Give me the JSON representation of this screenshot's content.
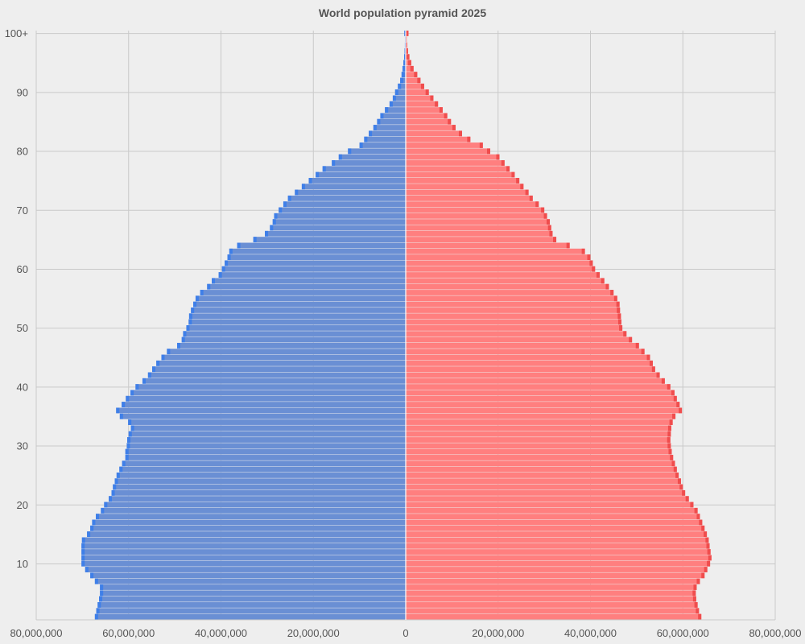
{
  "chart_data": {
    "type": "bar",
    "orientation": "horizontal-pyramid",
    "title": "World population pyramid 2025",
    "xlabel": "",
    "ylabel": "",
    "xlim": [
      -80000000,
      80000000
    ],
    "x_tick_values": [
      -80000000,
      -60000000,
      -40000000,
      -20000000,
      0,
      20000000,
      40000000,
      60000000,
      80000000
    ],
    "x_tick_labels": [
      "80,000,000",
      "60,000,000",
      "40,000,000",
      "20,000,000",
      "0",
      "20,000,000",
      "40,000,000",
      "60,000,000",
      "80,000,000"
    ],
    "y_tick_values": [
      10,
      20,
      30,
      40,
      50,
      60,
      70,
      80,
      90,
      100
    ],
    "y_tick_labels": [
      "10",
      "20",
      "30",
      "40",
      "50",
      "60",
      "70",
      "80",
      "90",
      "100+"
    ],
    "ages": [
      1,
      2,
      3,
      4,
      5,
      6,
      7,
      8,
      9,
      10,
      11,
      12,
      13,
      14,
      15,
      16,
      17,
      18,
      19,
      20,
      21,
      22,
      23,
      24,
      25,
      26,
      27,
      28,
      29,
      30,
      31,
      32,
      33,
      34,
      35,
      36,
      37,
      38,
      39,
      40,
      41,
      42,
      43,
      44,
      45,
      46,
      47,
      48,
      49,
      50,
      51,
      52,
      53,
      54,
      55,
      56,
      57,
      58,
      59,
      60,
      61,
      62,
      63,
      64,
      65,
      66,
      67,
      68,
      69,
      70,
      71,
      72,
      73,
      74,
      75,
      76,
      77,
      78,
      79,
      80,
      81,
      82,
      83,
      84,
      85,
      86,
      87,
      88,
      89,
      90,
      91,
      92,
      93,
      94,
      95,
      96,
      97,
      98,
      99,
      100
    ],
    "grid": true,
    "legend": "none",
    "colors": {
      "male": "#6a8fd4",
      "male_edge": "#3f7fe8",
      "female": "#ff7f7f",
      "female_edge": "#f04d4d",
      "grid": "#c9c9c9",
      "zero_line": "#ffffff"
    },
    "series": [
      {
        "key": "male",
        "values": [
          67300000,
          67000000,
          66700000,
          66400000,
          66200000,
          66200000,
          67300000,
          68300000,
          69400000,
          70200000,
          70200000,
          70200000,
          70200000,
          70100000,
          69000000,
          68300000,
          67900000,
          67100000,
          66000000,
          65300000,
          64300000,
          63700000,
          63400000,
          63000000,
          62600000,
          62000000,
          61400000,
          60700000,
          60700000,
          60400000,
          60300000,
          60000000,
          59500000,
          60100000,
          61900000,
          62700000,
          61500000,
          60600000,
          59600000,
          58500000,
          57000000,
          55800000,
          54900000,
          54000000,
          52900000,
          51700000,
          49500000,
          48500000,
          48200000,
          47500000,
          47000000,
          46900000,
          46500000,
          46000000,
          45500000,
          44500000,
          43000000,
          42000000,
          40500000,
          39800000,
          39200000,
          38600000,
          38200000,
          36500000,
          33000000,
          30500000,
          29400000,
          28800000,
          28500000,
          27500000,
          26500000,
          25500000,
          24000000,
          22500000,
          21000000,
          19500000,
          18000000,
          16000000,
          14500000,
          12500000,
          10000000,
          9000000,
          8000000,
          7000000,
          6200000,
          5500000,
          4500000,
          3500000,
          2800000,
          2300000,
          1700000,
          1200000,
          900000,
          700000,
          500000,
          350000,
          250000,
          180000,
          130000,
          300000
        ]
      },
      {
        "key": "female",
        "values": [
          64000000,
          63500000,
          63200000,
          62900000,
          62800000,
          63000000,
          63700000,
          64700000,
          65300000,
          65900000,
          66200000,
          66000000,
          65800000,
          65600000,
          65200000,
          64700000,
          64200000,
          63700000,
          63200000,
          62300000,
          61300000,
          60500000,
          60000000,
          59600000,
          59100000,
          58700000,
          58300000,
          57900000,
          57600000,
          57400000,
          57300000,
          57400000,
          57500000,
          57800000,
          58400000,
          59800000,
          59300000,
          58700000,
          58200000,
          57300000,
          56100000,
          55000000,
          54000000,
          53500000,
          52900000,
          51700000,
          50500000,
          49000000,
          47800000,
          46900000,
          46700000,
          46600000,
          46400000,
          46300000,
          45800000,
          45000000,
          44000000,
          43000000,
          42000000,
          41000000,
          40500000,
          40000000,
          38800000,
          35500000,
          32600000,
          31800000,
          31500000,
          31200000,
          30600000,
          30000000,
          28800000,
          27500000,
          26600000,
          25500000,
          24600000,
          23600000,
          22500000,
          21400000,
          20300000,
          18300000,
          16700000,
          14000000,
          12200000,
          10800000,
          9800000,
          9000000,
          8000000,
          7000000,
          6000000,
          5000000,
          4000000,
          3200000,
          2500000,
          1700000,
          1200000,
          800000,
          500000,
          300000,
          200000,
          600000
        ]
      }
    ]
  }
}
